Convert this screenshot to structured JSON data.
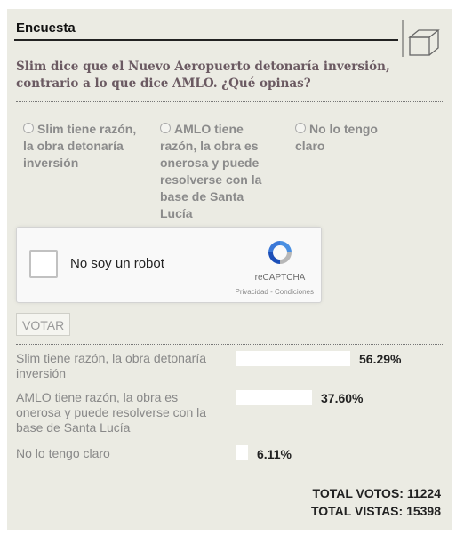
{
  "poll": {
    "title": "Encuesta",
    "question": "Slim dice que el Nuevo Aeropuerto detonaría inversión, contrario a lo que dice AMLO. ¿Qué opinas?",
    "options": [
      {
        "label": "Slim tiene razón, la obra detonaría inversión"
      },
      {
        "label": "AMLO tiene razón, la obra es onerosa y puede resolverse con la base de Santa Lucía"
      },
      {
        "label": "No lo tengo claro"
      }
    ],
    "captcha": {
      "label": "No soy un robot",
      "brand": "reCAPTCHA",
      "links": "Privacidad - Condiciones"
    },
    "vote_button": "VOTAR",
    "results": [
      {
        "label": "Slim tiene razón, la obra detonaría inversión",
        "percent": "56.29%",
        "value": 56.29
      },
      {
        "label": "AMLO tiene razón, la obra es onerosa y puede resolverse con la base de Santa Lucía",
        "percent": "37.60%",
        "value": 37.6
      },
      {
        "label": "No lo tengo claro",
        "percent": "6.11%",
        "value": 6.11
      }
    ],
    "total_votes": "TOTAL VOTOS: 11224",
    "total_views": "TOTAL VISTAS: 15398",
    "colors": {
      "background": "#ebebe3",
      "bar": "#ffffff",
      "question": "#6b5a62"
    },
    "icons": {
      "header": "box-icon",
      "captcha": "recaptcha-logo-icon"
    }
  }
}
